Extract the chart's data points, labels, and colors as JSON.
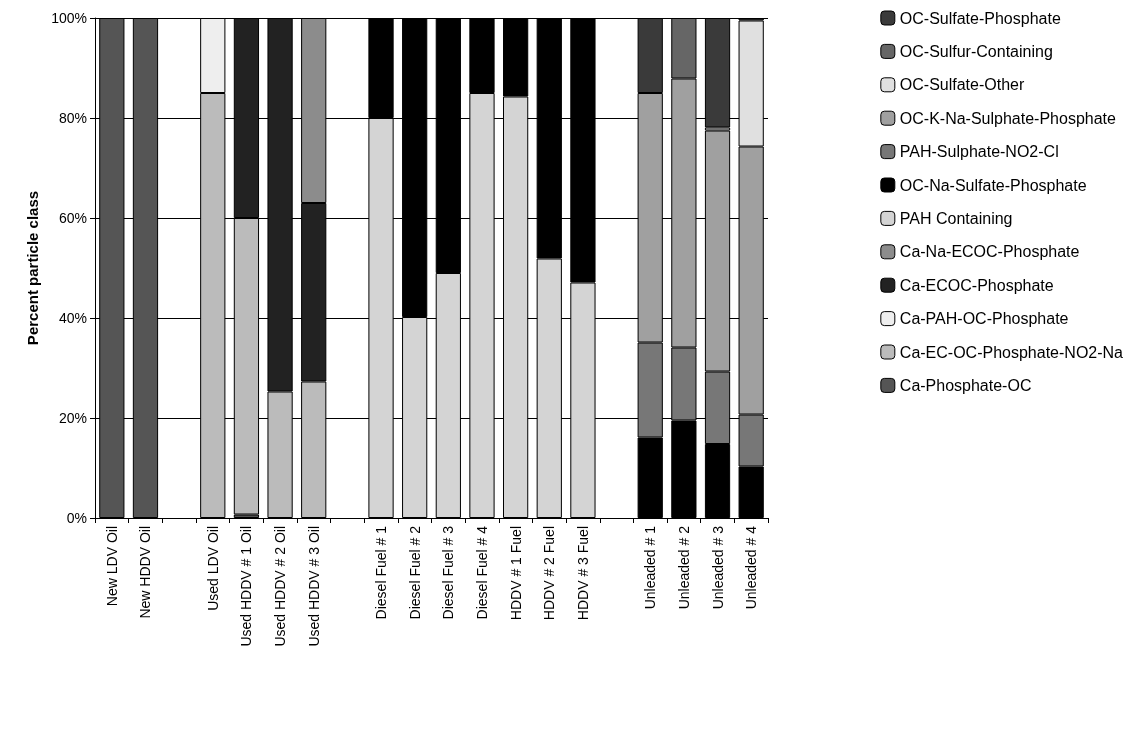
{
  "chart_data": {
    "type": "bar",
    "stacked": true,
    "ylabel": "Percent particle class",
    "categories": [
      "New LDV Oil",
      "New HDDV Oil",
      null,
      "Used LDV Oil",
      "Used HDDV # 1 Oil",
      "Used HDDV # 2 Oil",
      "Used HDDV # 3 Oil",
      null,
      "Diesel Fuel # 1",
      "Diesel Fuel # 2",
      "Diesel Fuel # 3",
      "Diesel Fuel # 4",
      "HDDV # 1 Fuel",
      "HDDV # 2 Fuel",
      "HDDV # 3 Fuel",
      null,
      "Unleaded # 1",
      "Unleaded # 2",
      "Unleaded # 3",
      "Unleaded # 4"
    ],
    "series": [
      {
        "name": "Ca-Phosphate-OC",
        "color": "#555555",
        "values": [
          100,
          100,
          null,
          null,
          0.7,
          null,
          null,
          null,
          null,
          null,
          null,
          null,
          null,
          null,
          null,
          null,
          null,
          null,
          null,
          null
        ]
      },
      {
        "name": "Ca-EC-OC-Phosphate-NO2-Na",
        "color": "#bbbbbb",
        "values": [
          null,
          null,
          null,
          85,
          59.3,
          25.3,
          27.3,
          null,
          null,
          null,
          null,
          null,
          null,
          null,
          null,
          null,
          null,
          null,
          null,
          null
        ]
      },
      {
        "name": "Ca-PAH-OC-Phosphate",
        "color": "#eeeeee",
        "values": [
          null,
          null,
          null,
          15,
          null,
          null,
          null,
          null,
          null,
          null,
          null,
          null,
          null,
          null,
          null,
          null,
          null,
          null,
          null,
          null
        ]
      },
      {
        "name": "Ca-ECOC-Phosphate",
        "color": "#222222",
        "values": [
          null,
          null,
          null,
          null,
          40,
          74.7,
          35.7,
          null,
          null,
          null,
          null,
          null,
          null,
          null,
          null,
          null,
          null,
          null,
          null,
          null
        ]
      },
      {
        "name": "Ca-Na-ECOC-Phosphate",
        "color": "#8c8c8c",
        "values": [
          null,
          null,
          null,
          null,
          null,
          null,
          37,
          null,
          null,
          null,
          null,
          null,
          null,
          null,
          null,
          null,
          null,
          null,
          null,
          null
        ]
      },
      {
        "name": "PAH Containing",
        "color": "#d4d4d4",
        "values": [
          null,
          null,
          null,
          null,
          null,
          null,
          null,
          null,
          80,
          40.2,
          49,
          85,
          84.3,
          51.9,
          47.1,
          null,
          null,
          null,
          null,
          null
        ]
      },
      {
        "name": "OC-Na-Sulfate-Phosphate",
        "color": "#000000",
        "values": [
          null,
          null,
          null,
          null,
          null,
          null,
          null,
          null,
          20,
          59.8,
          51,
          15,
          15.7,
          48.1,
          52.9,
          null,
          16.1,
          19.5,
          14.8,
          10.3
        ]
      },
      {
        "name": "PAH-Sulphate-NO2-Cl",
        "color": "#777777",
        "values": [
          null,
          null,
          null,
          null,
          null,
          null,
          null,
          null,
          null,
          null,
          null,
          null,
          null,
          null,
          null,
          null,
          19,
          14.6,
          14.5,
          10.4
        ]
      },
      {
        "name": "OC-K-Na-Sulphate-Phosphate",
        "color": "#a0a0a0",
        "values": [
          null,
          null,
          null,
          null,
          null,
          null,
          null,
          null,
          null,
          null,
          null,
          null,
          null,
          null,
          null,
          null,
          49.9,
          53.8,
          48.2,
          53.6
        ]
      },
      {
        "name": "OC-Sulfate-Other",
        "color": "#e0e0e0",
        "values": [
          null,
          null,
          null,
          null,
          null,
          null,
          null,
          null,
          null,
          null,
          null,
          null,
          null,
          null,
          null,
          null,
          null,
          null,
          0.6,
          25.2
        ]
      },
      {
        "name": "OC-Sulfur-Containing",
        "color": "#666666",
        "values": [
          null,
          null,
          null,
          null,
          null,
          null,
          null,
          null,
          null,
          null,
          null,
          null,
          null,
          null,
          null,
          null,
          null,
          12.1,
          null,
          null
        ]
      },
      {
        "name": "OC-Sulfate-Phosphate",
        "color": "#3a3a3a",
        "values": [
          null,
          null,
          null,
          null,
          null,
          null,
          null,
          null,
          null,
          null,
          null,
          null,
          null,
          null,
          null,
          null,
          15,
          null,
          21.9,
          0.5
        ]
      }
    ],
    "ylim": [
      0,
      100
    ],
    "yticks": [
      {
        "value": 0,
        "label": "0%"
      },
      {
        "value": 20,
        "label": "20%"
      },
      {
        "value": 40,
        "label": "40%"
      },
      {
        "value": 60,
        "label": "60%"
      },
      {
        "value": 80,
        "label": "80%"
      },
      {
        "value": 100,
        "label": "100%"
      }
    ],
    "grid": "y",
    "legend": "right"
  }
}
